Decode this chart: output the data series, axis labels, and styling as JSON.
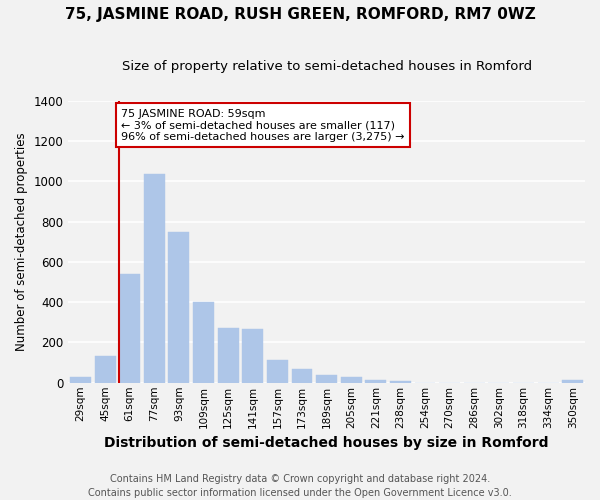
{
  "title": "75, JASMINE ROAD, RUSH GREEN, ROMFORD, RM7 0WZ",
  "subtitle": "Size of property relative to semi-detached houses in Romford",
  "xlabel": "Distribution of semi-detached houses by size in Romford",
  "ylabel": "Number of semi-detached properties",
  "categories": [
    "29sqm",
    "45sqm",
    "61sqm",
    "77sqm",
    "93sqm",
    "109sqm",
    "125sqm",
    "141sqm",
    "157sqm",
    "173sqm",
    "189sqm",
    "205sqm",
    "221sqm",
    "238sqm",
    "254sqm",
    "270sqm",
    "286sqm",
    "302sqm",
    "318sqm",
    "334sqm",
    "350sqm"
  ],
  "values": [
    28,
    135,
    540,
    1035,
    750,
    400,
    270,
    265,
    115,
    70,
    40,
    28,
    12,
    10,
    0,
    0,
    0,
    0,
    0,
    0,
    15
  ],
  "bar_color": "#aec6e8",
  "bar_edge_color": "#aec6e8",
  "red_line_index": 2,
  "annotation_text": "75 JASMINE ROAD: 59sqm\n← 3% of semi-detached houses are smaller (117)\n96% of semi-detached houses are larger (3,275) →",
  "annotation_box_facecolor": "#ffffff",
  "annotation_box_edgecolor": "#cc0000",
  "ylim": [
    0,
    1400
  ],
  "yticks": [
    0,
    200,
    400,
    600,
    800,
    1000,
    1200,
    1400
  ],
  "footer": "Contains HM Land Registry data © Crown copyright and database right 2024.\nContains public sector information licensed under the Open Government Licence v3.0.",
  "background_color": "#f2f2f2",
  "grid_color": "#ffffff",
  "title_fontsize": 11,
  "subtitle_fontsize": 9.5,
  "xlabel_fontsize": 10,
  "ylabel_fontsize": 8.5,
  "tick_fontsize": 7.5,
  "annotation_fontsize": 8,
  "footer_fontsize": 7
}
